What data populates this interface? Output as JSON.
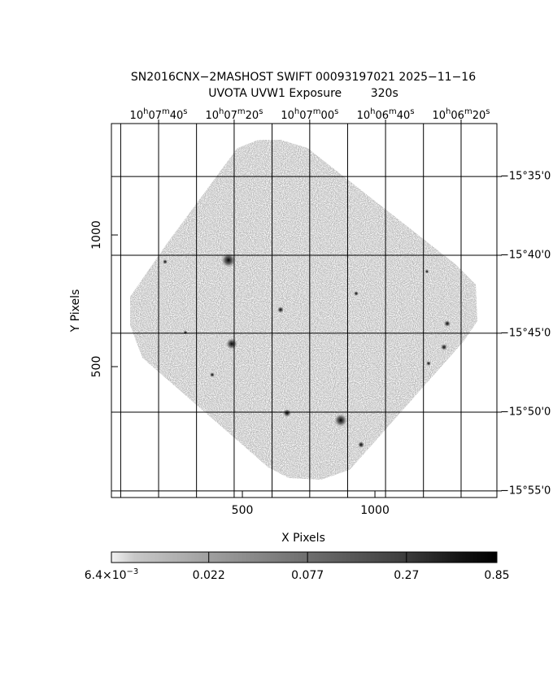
{
  "chart_data": {
    "type": "image",
    "title": "SN2016CNX−2MASHOST SWIFT 00093197021 2025−11−16",
    "subtitle": "UVOTA UVW1 Exposure        320s",
    "xlabel": "X Pixels",
    "ylabel": "Y Pixels",
    "xlim": [
      6,
      1460
    ],
    "ylim": [
      3,
      1423
    ],
    "xticks": [
      500,
      1000
    ],
    "yticks": [
      500,
      1000
    ],
    "ra_ticks": [
      {
        "value": 184,
        "label": [
          "10",
          "h",
          "07",
          "m",
          "40",
          "s"
        ]
      },
      {
        "value": 469,
        "label": [
          "10",
          "h",
          "07",
          "m",
          "20",
          "s"
        ]
      },
      {
        "value": 754,
        "label": [
          "10",
          "h",
          "07",
          "m",
          "00",
          "s"
        ]
      },
      {
        "value": 1040,
        "label": [
          "10",
          "h",
          "06",
          "m",
          "40",
          "s"
        ]
      },
      {
        "value": 1325,
        "label": [
          "10",
          "h",
          "06",
          "m",
          "20",
          "s"
        ]
      }
    ],
    "ra_minor": [
      41,
      327,
      612,
      897,
      1183
    ],
    "dec_ticks": [
      {
        "value": 1222,
        "label": "−15°35'0"
      },
      {
        "value": 923,
        "label": "−15°40'0"
      },
      {
        "value": 627,
        "label": "−15°45'0"
      },
      {
        "value": 327,
        "label": "−15°50'0"
      },
      {
        "value": 28,
        "label": "−15°55'0"
      }
    ],
    "colorbar": {
      "lim": [
        0.0064,
        0.85
      ],
      "log": true,
      "ticks": [
        {
          "value": 0.0064,
          "label": [
            "6.4×10",
            "−3"
          ]
        },
        0.022,
        0.077,
        0.27,
        0.85
      ]
    }
  }
}
